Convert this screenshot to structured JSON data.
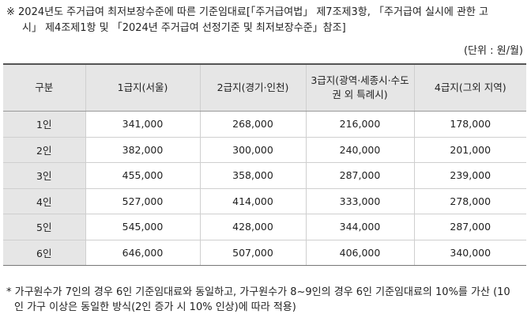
{
  "intro": {
    "line1": "※ 2024년도 주거급여 최저보장수준에 따른 기준임대료[「주거급여법」 제7조제3항, 「주거급여 실시에 관한 고",
    "line2": "시」 제4조제1항 및 「2024년 주거급여 선정기준 및 최저보장수준」참조]"
  },
  "unit": "(단위 : 원/월)",
  "table": {
    "headers": [
      "구분",
      "1급지(서울)",
      "2급지(경기·인천)",
      "3급지(광역·세종시·수도권 외 특례시)",
      "4급지(그외 지역)"
    ],
    "rows": [
      {
        "group": "1인",
        "values": [
          "341,000",
          "268,000",
          "216,000",
          "178,000"
        ]
      },
      {
        "group": "2인",
        "values": [
          "382,000",
          "300,000",
          "240,000",
          "201,000"
        ]
      },
      {
        "group": "3인",
        "values": [
          "455,000",
          "358,000",
          "287,000",
          "239,000"
        ]
      },
      {
        "group": "4인",
        "values": [
          "527,000",
          "414,000",
          "333,000",
          "278,000"
        ]
      },
      {
        "group": "5인",
        "values": [
          "545,000",
          "428,000",
          "344,000",
          "287,000"
        ]
      },
      {
        "group": "6인",
        "values": [
          "646,000",
          "507,000",
          "406,000",
          "340,000"
        ]
      }
    ]
  },
  "note": {
    "line1": "* 가구원수가 7인의 경우 6인 기준임대료와 동일하고, 가구원수가 8~9인의 경우 6인 기준임대료의 10%를 가산 (10",
    "line2": "인 가구 이상은 동일한 방식(2인 증가 시 10% 인상)에 따라 적용)"
  }
}
